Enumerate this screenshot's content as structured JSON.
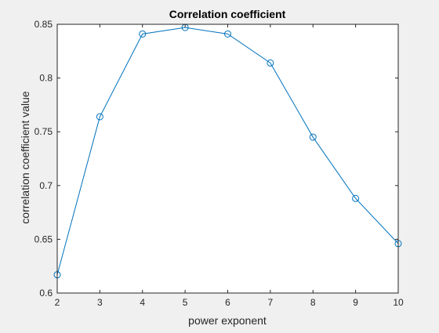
{
  "chart_data": {
    "type": "line",
    "title": "Correlation coefficient",
    "xlabel": "power exponent",
    "ylabel": "correlation coefficient value",
    "xlim": [
      2,
      10
    ],
    "ylim": [
      0.6,
      0.85
    ],
    "x_ticks": [
      2,
      3,
      4,
      5,
      6,
      7,
      8,
      9,
      10
    ],
    "x_tick_labels": [
      "2",
      "3",
      "4",
      "5",
      "6",
      "7",
      "8",
      "9",
      "10"
    ],
    "y_ticks": [
      0.6,
      0.65,
      0.7,
      0.75,
      0.8,
      0.85
    ],
    "y_tick_labels": [
      "0.6",
      "0.65",
      "0.7",
      "0.75",
      "0.8",
      "0.85"
    ],
    "grid": false,
    "marker": "circle",
    "series": [
      {
        "color": "#0072bd",
        "x": [
          2,
          3,
          4,
          5,
          6,
          7,
          8,
          9,
          10
        ],
        "y": [
          0.617,
          0.764,
          0.841,
          0.847,
          0.841,
          0.814,
          0.745,
          0.688,
          0.646
        ]
      }
    ]
  },
  "colors": {
    "figure_background": "#f0f0f0",
    "axes_background": "#ffffff",
    "axis_color": "#262626"
  }
}
